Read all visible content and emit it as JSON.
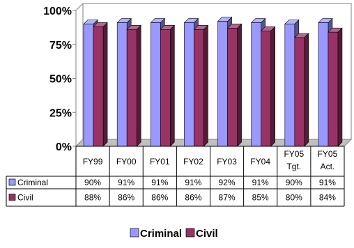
{
  "chart_data": {
    "type": "bar",
    "categories": [
      "FY99",
      "FY00",
      "FY01",
      "FY02",
      "FY03",
      "FY04",
      "FY05 Tgt.",
      "FY05 Act."
    ],
    "category_lines": [
      [
        "FY99"
      ],
      [
        "FY00"
      ],
      [
        "FY01"
      ],
      [
        "FY02"
      ],
      [
        "FY03"
      ],
      [
        "FY04"
      ],
      [
        "FY05",
        "Tgt."
      ],
      [
        "FY05",
        "Act."
      ]
    ],
    "series": [
      {
        "name": "Criminal",
        "values": [
          90,
          91,
          91,
          91,
          92,
          91,
          90,
          91
        ],
        "labels": [
          "90%",
          "91%",
          "91%",
          "91%",
          "92%",
          "91%",
          "90%",
          "91%"
        ],
        "color": "#9999FF"
      },
      {
        "name": "Civil",
        "values": [
          88,
          86,
          86,
          86,
          87,
          85,
          80,
          84
        ],
        "labels": [
          "88%",
          "86%",
          "86%",
          "86%",
          "87%",
          "85%",
          "80%",
          "84%"
        ],
        "color": "#993366"
      }
    ],
    "yticks": [
      "0%",
      "25%",
      "50%",
      "75%",
      "100%"
    ],
    "ytick_values": [
      0,
      25,
      50,
      75,
      100
    ],
    "ylim": [
      0,
      100
    ],
    "legend": "bottom",
    "data_table": true,
    "three_d": true
  }
}
